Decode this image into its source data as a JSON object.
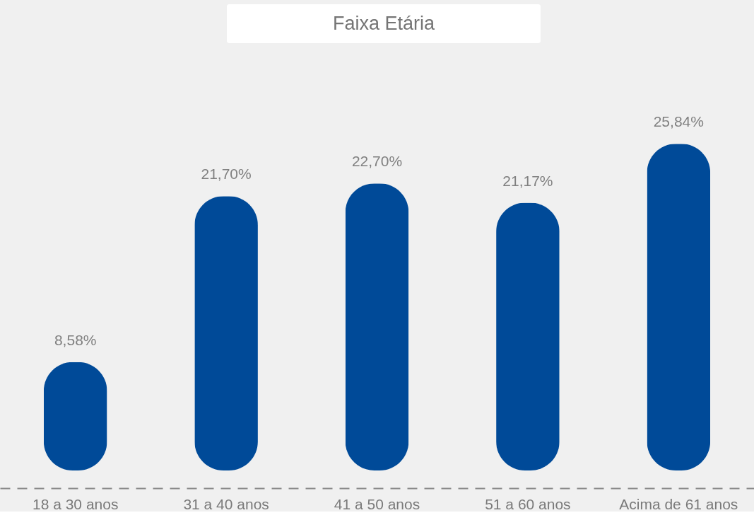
{
  "chart_data": {
    "type": "bar",
    "title": "Faixa Etária",
    "categories": [
      "18 a 30 anos",
      "31 a 40 anos",
      "41 a 50 anos",
      "51 a 60 anos",
      "Acima de 61 anos"
    ],
    "values": [
      8.58,
      21.7,
      22.7,
      21.17,
      25.84
    ],
    "value_labels": [
      "8,58%",
      "21,70%",
      "22,70%",
      "21,17%",
      "25,84%"
    ],
    "color": "#004a98"
  }
}
